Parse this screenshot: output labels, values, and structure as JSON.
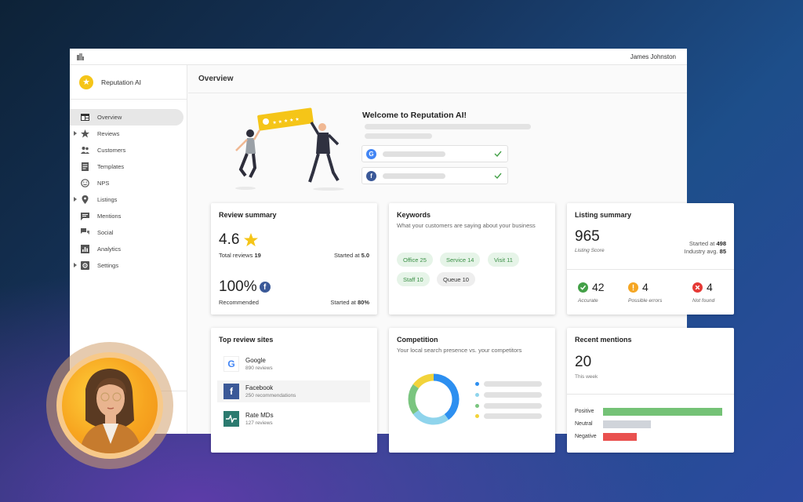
{
  "topbar": {
    "user_name": "James Johnston",
    "icon": "building-icon"
  },
  "brand": {
    "name": "Reputation AI",
    "icon": "star-icon"
  },
  "sidebar": {
    "items": [
      {
        "label": "Overview",
        "icon": "dashboard-icon",
        "active": true,
        "expandable": false
      },
      {
        "label": "Reviews",
        "icon": "star-icon",
        "active": false,
        "expandable": true
      },
      {
        "label": "Customers",
        "icon": "people-icon",
        "active": false,
        "expandable": false
      },
      {
        "label": "Templates",
        "icon": "document-icon",
        "active": false,
        "expandable": false
      },
      {
        "label": "NPS",
        "icon": "smiley-icon",
        "active": false,
        "expandable": false
      },
      {
        "label": "Listings",
        "icon": "location-pin-icon",
        "active": true,
        "expandable": true
      },
      {
        "label": "Mentions",
        "icon": "chat-bubble-icon",
        "active": false,
        "expandable": false
      },
      {
        "label": "Social",
        "icon": "forum-icon",
        "active": false,
        "expandable": false
      },
      {
        "label": "Analytics",
        "icon": "bar-chart-icon",
        "active": false,
        "expandable": false
      },
      {
        "label": "Settings",
        "icon": "gear-icon",
        "active": false,
        "expandable": true
      }
    ]
  },
  "header": {
    "title": "Overview"
  },
  "welcome": {
    "title": "Welcome to Reputation AI!",
    "illustration_stars": "★ ★ ★ ★ ★",
    "google_letter": "G",
    "facebook_letter": "f"
  },
  "review_summary": {
    "title": "Review summary",
    "rating": "4.6",
    "total_label": "Total reviews",
    "total_value": "19",
    "started_label": "Started at",
    "started_value": "5.0",
    "recommended_pct": "100%",
    "recommended_label": "Recommended",
    "rec_started_label": "Started at",
    "rec_started_value": "80%",
    "facebook_letter": "f"
  },
  "keywords": {
    "title": "Keywords",
    "subtitle": "What your customers are saying about your business",
    "chips": [
      {
        "label": "Office 25",
        "tone": "positive"
      },
      {
        "label": "Service 14",
        "tone": "positive"
      },
      {
        "label": "Visit 11",
        "tone": "positive"
      },
      {
        "label": "Staff 10",
        "tone": "positive"
      },
      {
        "label": "Queue 10",
        "tone": "neutral"
      }
    ]
  },
  "listing_summary": {
    "title": "Listing summary",
    "score": "965",
    "score_label": "Listing Score",
    "started_label": "Started at",
    "started_value": "498",
    "industry_label": "Industry avg.",
    "industry_value": "85",
    "stats": [
      {
        "value": "42",
        "label": "Accurate",
        "color": "#43a047"
      },
      {
        "value": "4",
        "label": "Possible errors",
        "color": "#f5a623"
      },
      {
        "value": "4",
        "label": "Not found",
        "color": "#e53935"
      }
    ]
  },
  "top_review_sites": {
    "title": "Top review sites",
    "sites": [
      {
        "name": "Google",
        "sub": "890 reviews",
        "logo": "G"
      },
      {
        "name": "Facebook",
        "sub": "250 recommendations",
        "logo": "f"
      },
      {
        "name": "Rate MDs",
        "sub": "127 reviews",
        "logo": "heartbeat-icon"
      }
    ]
  },
  "competition": {
    "title": "Competition",
    "subtitle": "Your local search presence vs. your competitors"
  },
  "chart_data": {
    "type": "pie",
    "donut": true,
    "categories": [
      "",
      "",
      "",
      ""
    ],
    "values": [
      40,
      25,
      20,
      15
    ],
    "colors": [
      "#2d8ff0",
      "#8fd4ec",
      "#7ac57f",
      "#f2d33a"
    ],
    "title": ""
  },
  "recent_mentions": {
    "title": "Recent mentions",
    "count": "20",
    "period": "This week",
    "rows": [
      {
        "label": "Positive",
        "value": 100,
        "color": "#74c276"
      },
      {
        "label": "Neutral",
        "value": 40,
        "color": "#d0d4da"
      },
      {
        "label": "Negative",
        "value": 28,
        "color": "#e9514f"
      }
    ]
  },
  "colors": {
    "accent": "#f5c518",
    "google_blue": "#4285f4",
    "facebook": "#3b5998",
    "positive": "#43a047"
  }
}
